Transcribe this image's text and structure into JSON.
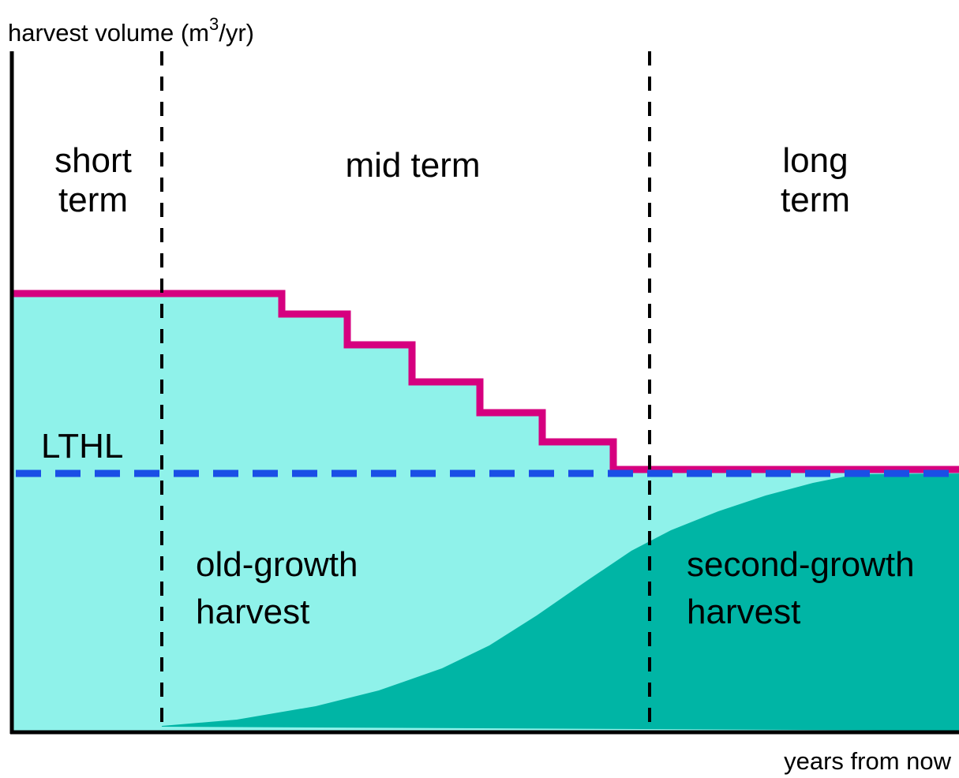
{
  "y_axis_label": {
    "text": "harvest volume (m",
    "superscript": "3",
    "suffix": "/yr)"
  },
  "x_axis_label": "years from now",
  "periods": [
    {
      "lines": [
        "short",
        "term"
      ]
    },
    {
      "lines": [
        "mid term"
      ]
    },
    {
      "lines": [
        "long",
        "term"
      ]
    }
  ],
  "reference_line": "LTHL",
  "areas": [
    {
      "lines": [
        "old-growth",
        "harvest"
      ]
    },
    {
      "lines": [
        "second-growth",
        "harvest"
      ]
    }
  ]
}
